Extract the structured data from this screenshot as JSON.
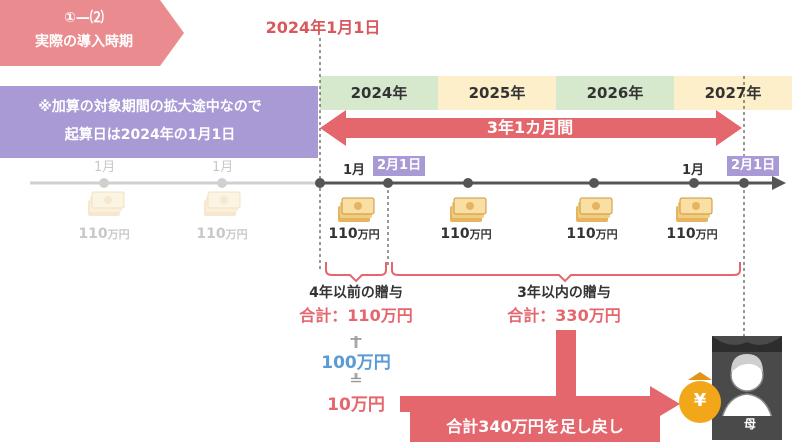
{
  "badge": {
    "line1": "①—⑵",
    "line2": "実際の導入時期"
  },
  "start_date": "2024年1月1日",
  "years": [
    "2024年",
    "2025年",
    "2026年",
    "2027年"
  ],
  "note": {
    "line1": "※加算の対象期間の拡大途中なので",
    "line2": "起算日は2024年の1月1日"
  },
  "period_label": "3年1カ月間",
  "timeline": {
    "faded_months": [
      "1月",
      "1月"
    ],
    "month_jan": "1月",
    "feb_label": "2月1日",
    "month_jan_end": "1月",
    "feb_label_end": "2月1日"
  },
  "gifts": {
    "faded": [
      {
        "value": "110",
        "unit": "万円"
      },
      {
        "value": "110",
        "unit": "万円"
      }
    ],
    "active": [
      {
        "value": "110",
        "unit": "万円"
      },
      {
        "value": "110",
        "unit": "万円"
      },
      {
        "value": "110",
        "unit": "万円"
      },
      {
        "value": "110",
        "unit": "万円"
      }
    ]
  },
  "group_before": {
    "title": "4年以前の贈与",
    "total": "合計：110万円"
  },
  "group_within": {
    "title": "3年以内の贈与",
    "total": "合計：330万円"
  },
  "calc": {
    "minus": "ー",
    "deduction": "100万円",
    "equals": "＝",
    "result": "10万円"
  },
  "bottom_label": "合計340万円を足し戻し",
  "mother": {
    "label": "母",
    "money_symbol": "¥"
  },
  "colors": {
    "pink": "#e5676e",
    "salmon": "#ea8b8f",
    "lavender": "#a99ad6",
    "green": "#d7e9cd",
    "cream": "#fdefc9",
    "blue": "#5b9bd5",
    "gold": "#f2a71b"
  }
}
